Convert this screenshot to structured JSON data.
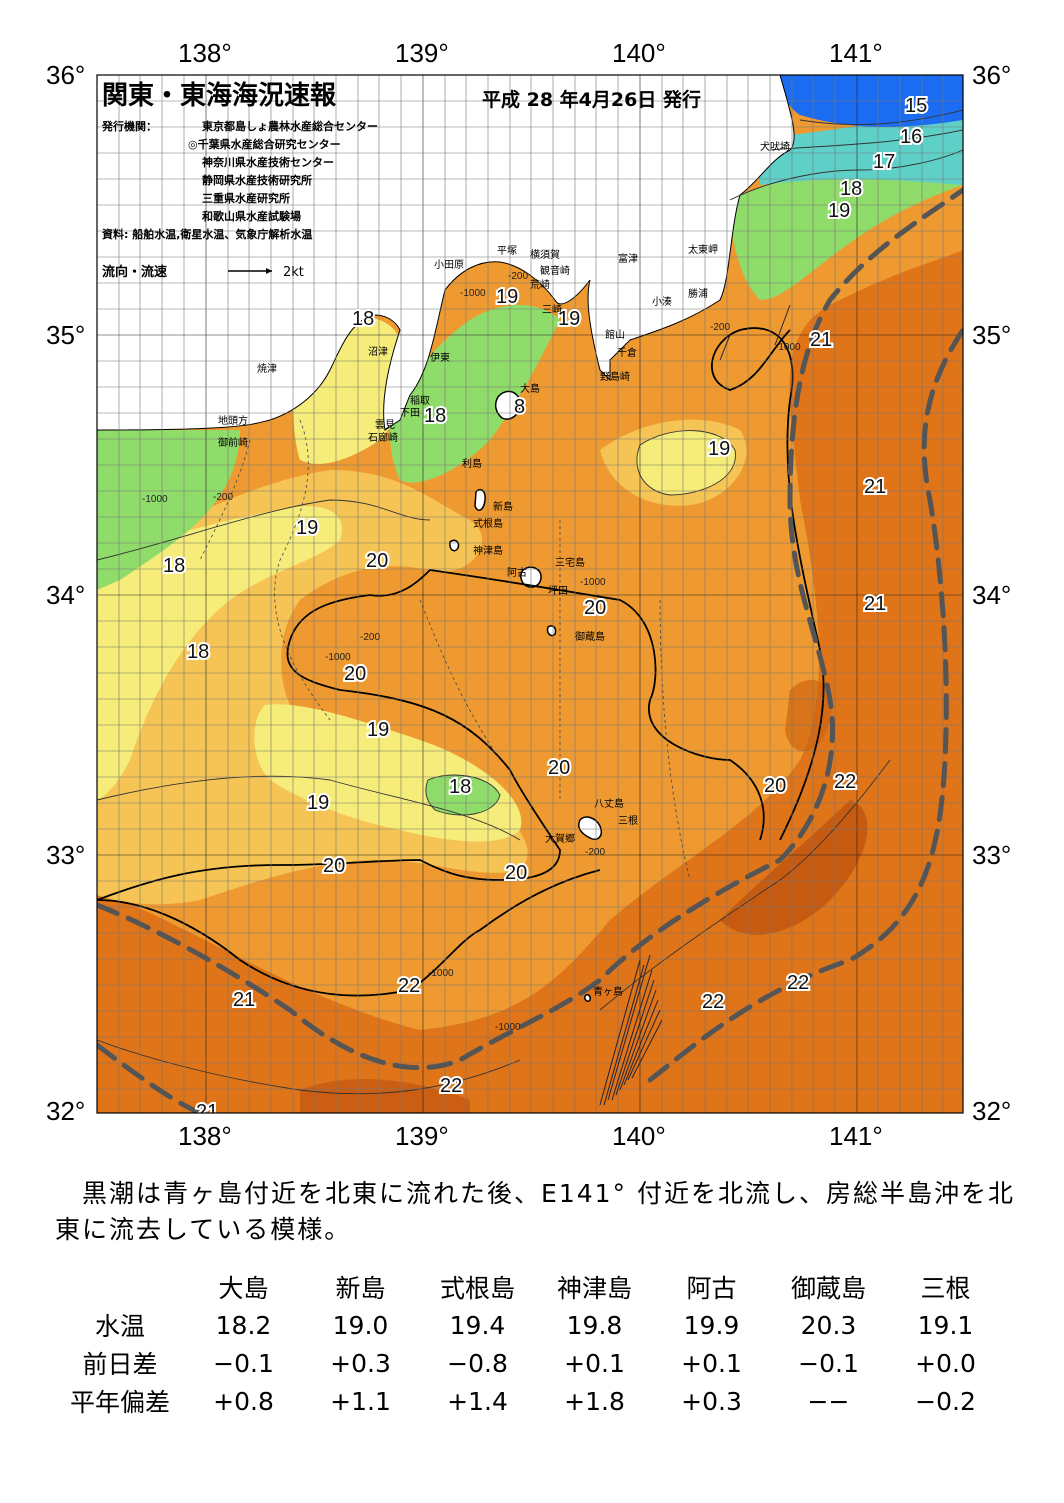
{
  "map": {
    "title": "関東・東海海況速報",
    "issue_date": "平成 28 年4月26日 発行",
    "publisher_label": "発行機関：",
    "publishers": [
      "東京都島しょ農林水産総合センター",
      "◎千葉県水産総合研究センター",
      "神奈川県水産技術センター",
      "静岡県水産技術研究所",
      "三重県水産研究所",
      "和歌山県水産試験場"
    ],
    "source": "資料: 船舶水温,衛星水温、気象庁解析水温",
    "current_legend": "流向・流速",
    "current_scale": "2kt",
    "lon_ticks": [
      "138°",
      "139°",
      "140°",
      "141°"
    ],
    "lat_ticks": [
      "36°",
      "35°",
      "34°",
      "33°",
      "32°"
    ],
    "isotherm_labels": [
      "15",
      "16",
      "17",
      "18",
      "19",
      "21",
      "18",
      "19",
      "18",
      "8",
      "19",
      "19",
      "19",
      "18",
      "20",
      "20",
      "21",
      "21",
      "18",
      "20",
      "19",
      "18",
      "19",
      "20",
      "20",
      "20",
      "22",
      "21",
      "22",
      "22",
      "22",
      "21",
      "20"
    ],
    "depth_labels": [
      "-200",
      "-1000",
      "-200",
      "-1000",
      "-200",
      "-1000",
      "-1000",
      "-200",
      "-1000",
      "-200",
      "-1000",
      "-1000"
    ],
    "places": [
      "犬吠埼",
      "太東岬",
      "勝浦",
      "小湊",
      "富津",
      "館山",
      "千倉",
      "野島崎",
      "観音崎",
      "荒崎",
      "三崎",
      "横須賀",
      "平塚",
      "小田原",
      "沼津",
      "伊東",
      "焼津",
      "地頭方",
      "御前崎",
      "稲取",
      "下田",
      "雲見",
      "石廊崎",
      "大島",
      "利島",
      "新島",
      "式根島",
      "神津島",
      "三宅島",
      "阿古",
      "坪田",
      "御蔵島",
      "八丈島",
      "三根",
      "大賀郷",
      "青ヶ島"
    ],
    "colors": {
      "cold_blue": "#1b6cf0",
      "green": "#8fdc6a",
      "yellow": "#f5ec7a",
      "light_orange": "#f5c455",
      "orange": "#ef9a30",
      "deep_orange": "#df7418",
      "dark_orange": "#c2560f",
      "kuroshio_axis": "#555555"
    }
  },
  "summary": "黒潮は青ヶ島付近を北東に流れた後、E141° 付近を北流し、房総半島沖を北東に流去している模様。",
  "table": {
    "stations": [
      "大島",
      "新島",
      "式根島",
      "神津島",
      "阿古",
      "御蔵島",
      "三根"
    ],
    "rows": [
      {
        "label": "水温",
        "values": [
          "18.2",
          "19.0",
          "19.4",
          "19.8",
          "19.9",
          "20.3",
          "19.1"
        ]
      },
      {
        "label": "前日差",
        "values": [
          "−0.1",
          "+0.3",
          "−0.8",
          "+0.1",
          "+0.1",
          "−0.1",
          "+0.0"
        ]
      },
      {
        "label": "平年偏差",
        "values": [
          "+0.8",
          "+1.1",
          "+1.4",
          "+1.8",
          "+0.3",
          "−−",
          "−0.2"
        ]
      }
    ]
  }
}
